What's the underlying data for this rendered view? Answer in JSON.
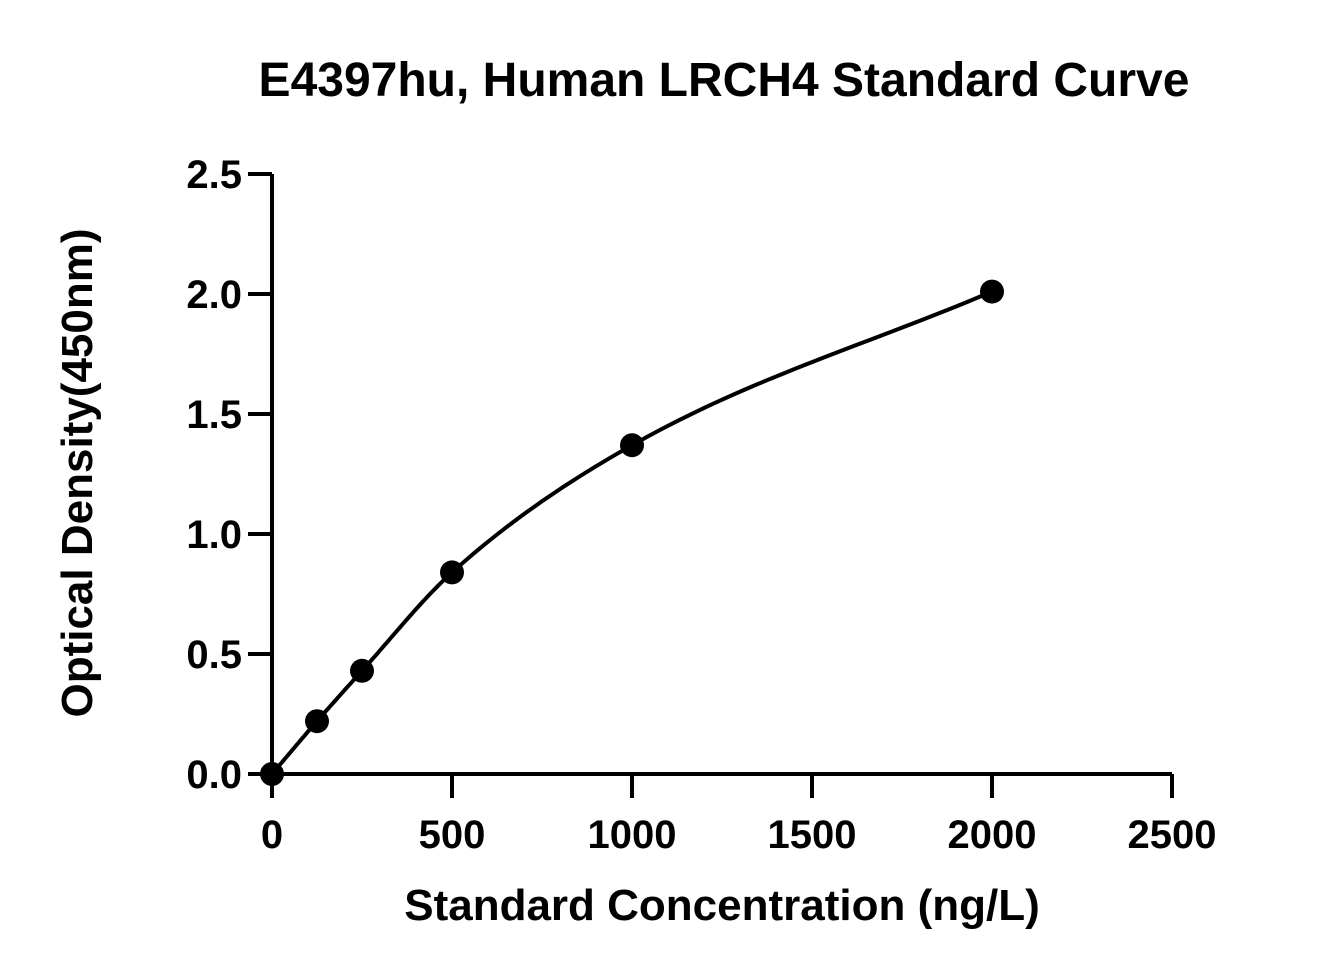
{
  "chart_data": {
    "type": "scatter",
    "title": "E4397hu, Human LRCH4 Standard Curve",
    "xlabel": "Standard Concentration (ng/L)",
    "ylabel": "Optical Density(450nm)",
    "xlim": [
      0,
      2500
    ],
    "ylim": [
      0,
      2.5
    ],
    "xticks": [
      0,
      500,
      1000,
      1500,
      2000,
      2500
    ],
    "yticks": [
      0.0,
      0.5,
      1.0,
      1.5,
      2.0,
      2.5
    ],
    "xtick_labels": [
      "0",
      "500",
      "1000",
      "1500",
      "2000",
      "2500"
    ],
    "ytick_labels": [
      "0.0",
      "0.5",
      "1.0",
      "1.5",
      "2.0",
      "2.5"
    ],
    "grid": false,
    "series": [
      {
        "x": [
          0,
          125,
          250,
          500,
          1000,
          2000
        ],
        "y": [
          0.0,
          0.22,
          0.43,
          0.84,
          1.37,
          2.01
        ],
        "marker": "circle",
        "color": "#000000",
        "fit_line": true
      }
    ]
  }
}
